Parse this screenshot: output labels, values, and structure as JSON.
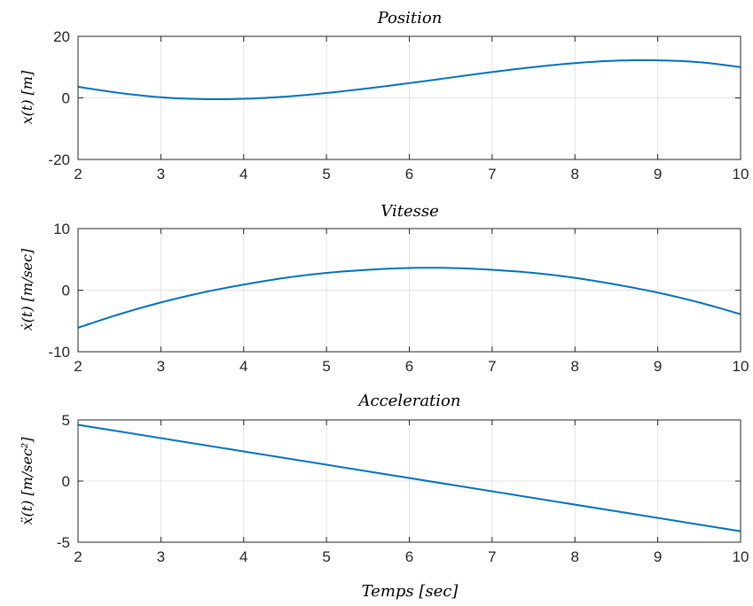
{
  "chart_data": [
    {
      "type": "line",
      "title": "Position",
      "ylabel": "x(t) [m]",
      "xlabel": "",
      "xlim": [
        2,
        10
      ],
      "ylim": [
        -20,
        20
      ],
      "x_ticks": [
        2,
        3,
        4,
        5,
        6,
        7,
        8,
        9,
        10
      ],
      "y_ticks": [
        -20,
        0,
        20
      ],
      "grid": true,
      "line_color": "#0072BD",
      "x": [
        2,
        2.5,
        3,
        3.5,
        4,
        4.5,
        5,
        5.5,
        6,
        6.5,
        7,
        7.5,
        8,
        8.5,
        9,
        9.5,
        10
      ],
      "values": [
        3.6,
        1.6,
        0.2,
        -0.4,
        -0.3,
        0.4,
        1.6,
        3.1,
        4.8,
        6.6,
        8.4,
        10.0,
        11.3,
        12.1,
        12.2,
        11.6,
        10.0
      ]
    },
    {
      "type": "line",
      "title": "Vitesse",
      "ylabel": "ẋ(t) [m/sec]",
      "xlabel": "",
      "xlim": [
        2,
        10
      ],
      "ylim": [
        -10,
        10
      ],
      "x_ticks": [
        2,
        3,
        4,
        5,
        6,
        7,
        8,
        9,
        10
      ],
      "y_ticks": [
        -10,
        0,
        10
      ],
      "grid": true,
      "line_color": "#0072BD",
      "x": [
        2,
        2.5,
        3,
        3.5,
        4,
        4.5,
        5,
        5.5,
        6,
        6.5,
        7,
        7.5,
        8,
        8.5,
        9,
        9.5,
        10
      ],
      "values": [
        -6.1,
        -3.9,
        -2.0,
        -0.4,
        0.9,
        2.0,
        2.8,
        3.3,
        3.6,
        3.6,
        3.3,
        2.8,
        2.0,
        0.9,
        -0.4,
        -2.0,
        -3.9
      ]
    },
    {
      "type": "line",
      "title": "Acceleration",
      "ylabel": "ẍ(t) [m/sec²]",
      "xlabel": "Temps [sec]",
      "xlim": [
        2,
        10
      ],
      "ylim": [
        -5,
        5
      ],
      "x_ticks": [
        2,
        3,
        4,
        5,
        6,
        7,
        8,
        9,
        10
      ],
      "y_ticks": [
        -5,
        0,
        5
      ],
      "grid": true,
      "line_color": "#0072BD",
      "x": [
        2,
        10
      ],
      "values": [
        4.6,
        -4.1
      ]
    }
  ]
}
